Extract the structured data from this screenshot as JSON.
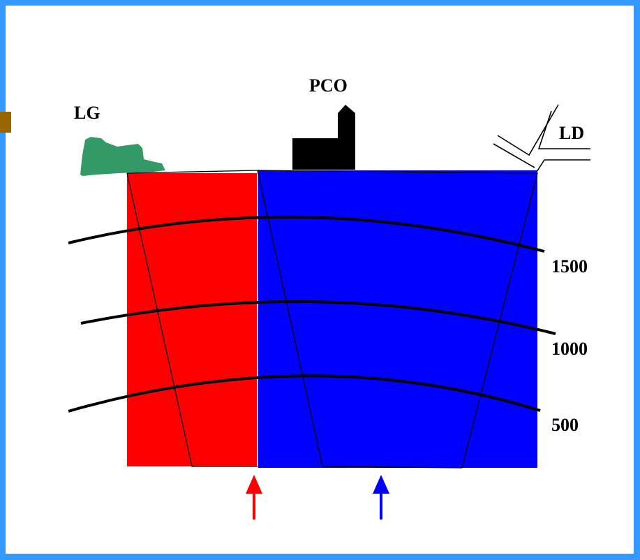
{
  "labels": {
    "lg": "LG",
    "pco": "PCO",
    "ld": "LD"
  },
  "contours": [
    "1500",
    "1000",
    "500"
  ],
  "colors": {
    "frame": "#3399ff",
    "corner_tab": "#996600",
    "left_block": "#ff0000",
    "right_block": "#0000ff",
    "lg_shape": "#339966",
    "pco_shape": "#000000",
    "left_arrow": "#ff0000",
    "right_arrow": "#0000ff",
    "lines": "#000000"
  },
  "icons": {
    "lg": "lg-landform-icon",
    "pco": "pco-building-icon",
    "ld": "ld-road-junction-icon"
  }
}
